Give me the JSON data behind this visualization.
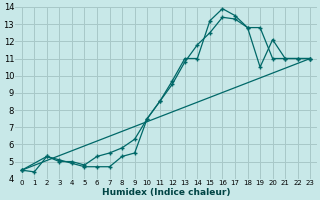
{
  "xlabel": "Humidex (Indice chaleur)",
  "bg_color": "#c8e8e8",
  "grid_color": "#a8c8c8",
  "line_color": "#006868",
  "xlim": [
    -0.5,
    23.5
  ],
  "ylim": [
    4,
    14
  ],
  "xticks": [
    0,
    1,
    2,
    3,
    4,
    5,
    6,
    7,
    8,
    9,
    10,
    11,
    12,
    13,
    14,
    15,
    16,
    17,
    18,
    19,
    20,
    21,
    22,
    23
  ],
  "yticks": [
    4,
    5,
    6,
    7,
    8,
    9,
    10,
    11,
    12,
    13,
    14
  ],
  "curve1_x": [
    0,
    1,
    2,
    3,
    4,
    5,
    6,
    7,
    8,
    9,
    10,
    11,
    12,
    13,
    14,
    15,
    16,
    17,
    18,
    19,
    20,
    21,
    22,
    23
  ],
  "curve1_y": [
    4.5,
    4.4,
    5.3,
    5.1,
    4.9,
    4.7,
    4.7,
    4.7,
    5.3,
    5.5,
    7.5,
    8.5,
    9.7,
    11.0,
    11.0,
    13.2,
    13.9,
    13.5,
    12.8,
    10.5,
    12.1,
    11.0,
    11.0,
    11.0
  ],
  "curve2_x": [
    0,
    2,
    3,
    4,
    5,
    6,
    7,
    8,
    9,
    10,
    11,
    12,
    13,
    14,
    15,
    16,
    17,
    18,
    19,
    20,
    21,
    22,
    23
  ],
  "curve2_y": [
    4.5,
    5.3,
    5.0,
    5.0,
    4.8,
    5.3,
    5.5,
    5.8,
    6.3,
    7.5,
    8.5,
    9.5,
    10.8,
    11.8,
    12.5,
    13.4,
    13.3,
    12.8,
    12.8,
    11.0,
    11.0,
    11.0,
    11.0
  ],
  "curve3_x": [
    0,
    23
  ],
  "curve3_y": [
    4.5,
    11.0
  ]
}
